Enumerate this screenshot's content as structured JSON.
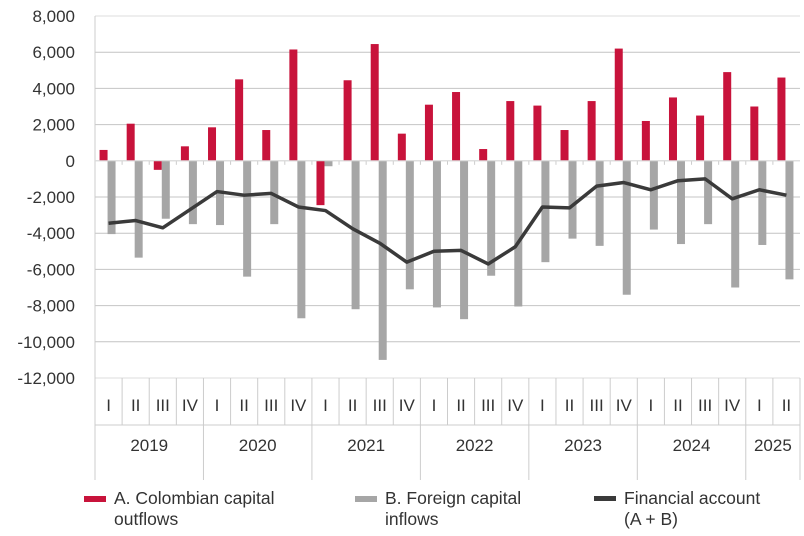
{
  "chart_data": {
    "type": "bar",
    "categories": [
      "I",
      "II",
      "III",
      "IV",
      "I",
      "II",
      "III",
      "IV",
      "I",
      "II",
      "III",
      "IV",
      "I",
      "II",
      "III",
      "IV",
      "I",
      "II",
      "III",
      "IV",
      "I",
      "II",
      "III",
      "IV",
      "I",
      "II"
    ],
    "years": [
      {
        "label": "2019",
        "quarters": 4
      },
      {
        "label": "2020",
        "quarters": 4
      },
      {
        "label": "2021",
        "quarters": 4
      },
      {
        "label": "2022",
        "quarters": 4
      },
      {
        "label": "2023",
        "quarters": 4
      },
      {
        "label": "2024",
        "quarters": 4
      },
      {
        "label": "2025",
        "quarters": 2
      }
    ],
    "ylim": [
      -12000,
      8000
    ],
    "yticks": [
      "8,000",
      "6,000",
      "4,000",
      "2,000",
      "0",
      "-2,000",
      "-4,000",
      "-6,000",
      "-8,000",
      "-10,000",
      "-12,000"
    ],
    "grid": true,
    "legend_placement": "bottom",
    "series": [
      {
        "name": "A. Colombian capital outflows",
        "type": "bar",
        "color": "#c8133b",
        "values": [
          600,
          2050,
          -500,
          800,
          1850,
          4500,
          1700,
          6150,
          -2450,
          4450,
          6450,
          1500,
          3100,
          3800,
          650,
          3300,
          3050,
          1700,
          3300,
          6200,
          2200,
          3500,
          2500,
          4900,
          3000,
          4600
        ]
      },
      {
        "name": "B. Foreign capital inflows",
        "type": "bar",
        "color": "#a6a6a6",
        "values": [
          -4050,
          -5350,
          -3200,
          -3500,
          -3550,
          -6400,
          -3500,
          -8700,
          -300,
          -8200,
          -11000,
          -7100,
          -8100,
          -8750,
          -6350,
          -8050,
          -5600,
          -4300,
          -4700,
          -7400,
          -3800,
          -4600,
          -3500,
          -7000,
          -4650,
          -6550
        ]
      },
      {
        "name": "Financial account (A + B)",
        "type": "line",
        "color": "#3a3a3a",
        "values": [
          -3450,
          -3300,
          -3700,
          -2700,
          -1700,
          -1900,
          -1800,
          -2550,
          -2750,
          -3750,
          -4550,
          -5600,
          -5000,
          -4950,
          -5700,
          -4750,
          -2550,
          -2600,
          -1400,
          -1200,
          -1600,
          -1100,
          -1000,
          -2100,
          -1600,
          -1900
        ]
      }
    ]
  },
  "legend": [
    {
      "line1": "A. Colombian capital",
      "line2": "outflows"
    },
    {
      "line1": "B. Foreign capital",
      "line2": "inflows"
    },
    {
      "line1": "Financial account",
      "line2": "(A + B)"
    }
  ]
}
